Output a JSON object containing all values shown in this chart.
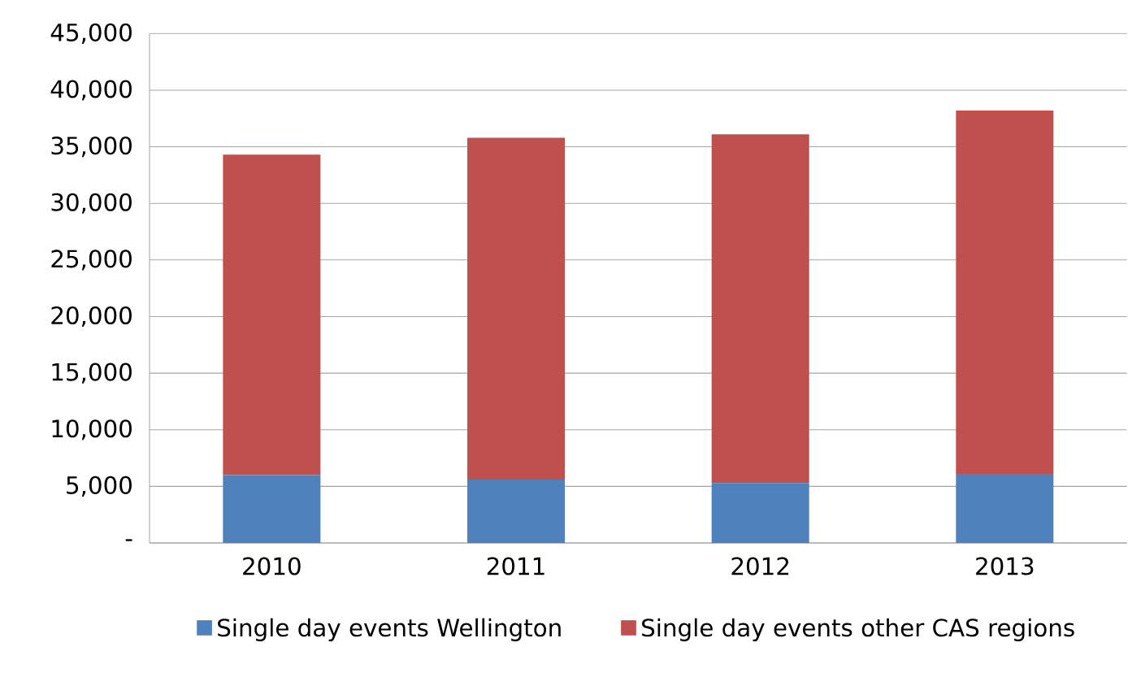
{
  "chart_data": {
    "type": "bar",
    "stacked": true,
    "categories": [
      "2010",
      "2011",
      "2012",
      "2013"
    ],
    "series": [
      {
        "name": "Single day events Wellington",
        "color": "#4f81bd",
        "values": [
          6000,
          5600,
          5300,
          6100
        ]
      },
      {
        "name": "Single day events other CAS regions",
        "color": "#c0504d",
        "values": [
          28300,
          30200,
          30800,
          32100
        ]
      }
    ],
    "ylim": [
      0,
      45000
    ],
    "yticks": [
      {
        "value": 0,
        "label": "-"
      },
      {
        "value": 5000,
        "label": "5,000"
      },
      {
        "value": 10000,
        "label": "10,000"
      },
      {
        "value": 15000,
        "label": "15,000"
      },
      {
        "value": 20000,
        "label": "20,000"
      },
      {
        "value": 25000,
        "label": "25,000"
      },
      {
        "value": 30000,
        "label": "30,000"
      },
      {
        "value": 35000,
        "label": "35,000"
      },
      {
        "value": 40000,
        "label": "40,000"
      },
      {
        "value": 45000,
        "label": "45,000"
      }
    ],
    "grid": "y",
    "legend": "bottom"
  }
}
